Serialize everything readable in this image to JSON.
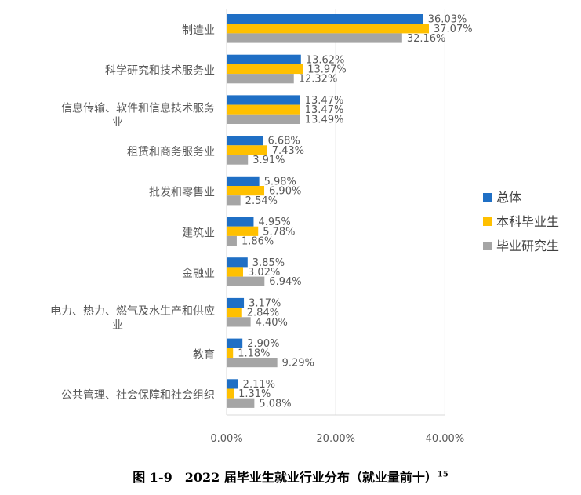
{
  "chart_data": {
    "type": "bar",
    "orientation": "horizontal",
    "categories": [
      "制造业",
      "科学研究和技术服务业",
      "信息传输、软件和信息技术服务业",
      "租赁和商务服务业",
      "批发和零售业",
      "建筑业",
      "金融业",
      "电力、热力、燃气及水生产和供应业",
      "教育",
      "公共管理、社会保障和社会组织"
    ],
    "series": [
      {
        "name": "总体",
        "color": "#1F6FC5",
        "values": [
          36.03,
          13.62,
          13.47,
          6.68,
          5.98,
          4.95,
          3.85,
          3.17,
          2.9,
          2.11
        ],
        "labels": [
          "36.03%",
          "13.62%",
          "13.47%",
          "6.68%",
          "5.98%",
          "4.95%",
          "3.85%",
          "3.17%",
          "2.90%",
          "2.11%"
        ]
      },
      {
        "name": "本科毕业生",
        "color": "#FFC000",
        "values": [
          37.07,
          13.97,
          13.47,
          7.43,
          6.9,
          5.78,
          3.02,
          2.84,
          1.18,
          1.31
        ],
        "labels": [
          "37.07%",
          "13.97%",
          "13.47%",
          "7.43%",
          "6.90%",
          "5.78%",
          "3.02%",
          "2.84%",
          "1.18%",
          "1.31%"
        ]
      },
      {
        "name": "毕业研究生",
        "color": "#A5A5A5",
        "values": [
          32.16,
          12.32,
          13.49,
          3.91,
          2.54,
          1.86,
          6.94,
          4.4,
          9.29,
          5.08
        ],
        "labels": [
          "32.16%",
          "12.32%",
          "13.49%",
          "3.91%",
          "2.54%",
          "1.86%",
          "6.94%",
          "4.40%",
          "9.29%",
          "5.08%"
        ]
      }
    ],
    "xlim": [
      0,
      40
    ],
    "xticks": [
      0,
      20,
      40
    ],
    "xtick_labels": [
      "0.00%",
      "20.00%",
      "40.00%"
    ],
    "legend_position": "right",
    "grid": true
  },
  "caption": {
    "text": "图 1-9　2022 届毕业生就业行业分布（就业量前十）",
    "sup": "15"
  }
}
